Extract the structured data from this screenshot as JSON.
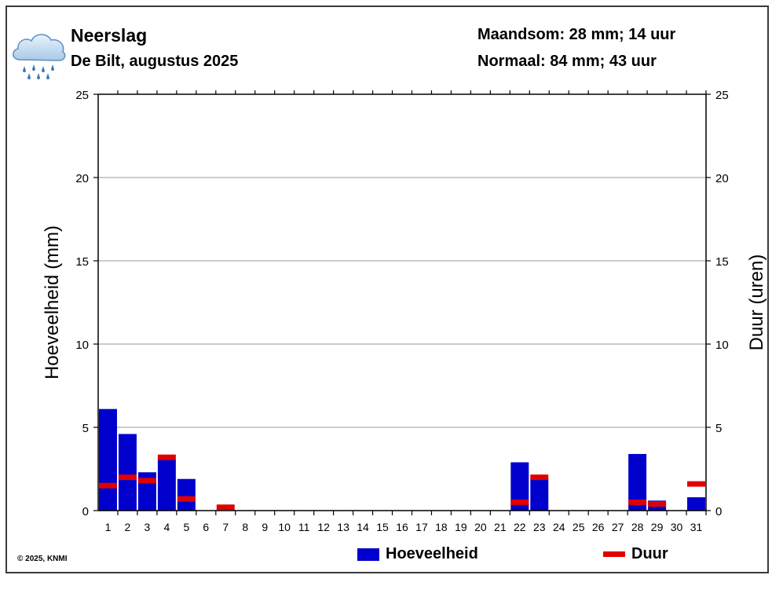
{
  "header": {
    "title": "Neerslag",
    "subtitle": "De Bilt, augustus 2025",
    "month_sum": "Maandsom: 28 mm; 14 uur",
    "normal": "Normaal: 84 mm; 43 uur"
  },
  "icon": "rain-cloud-icon",
  "copyright": "© 2025, KNMI",
  "colors": {
    "amount": "#0000cc",
    "duration": "#e00000",
    "grid": "#999999"
  },
  "chart_data": {
    "type": "bar",
    "xlabel": "",
    "ylabel": "Hoeveelheid (mm)",
    "y2label": "Duur (uren)",
    "ylim": [
      0,
      25
    ],
    "y2lim": [
      0,
      25
    ],
    "yticks": [
      0,
      5,
      10,
      15,
      20,
      25
    ],
    "grid": true,
    "categories": [
      "1",
      "2",
      "3",
      "4",
      "5",
      "6",
      "7",
      "8",
      "9",
      "10",
      "11",
      "12",
      "13",
      "14",
      "15",
      "16",
      "17",
      "18",
      "19",
      "20",
      "21",
      "22",
      "23",
      "24",
      "25",
      "26",
      "27",
      "28",
      "29",
      "30",
      "31"
    ],
    "series": [
      {
        "name": "Hoeveelheid",
        "type": "bar",
        "values": [
          6.1,
          4.6,
          2.3,
          3.1,
          1.9,
          0,
          0,
          0,
          0,
          0,
          0,
          0,
          0,
          0,
          0,
          0,
          0,
          0,
          0,
          0,
          0,
          2.9,
          1.9,
          0,
          0,
          0,
          0,
          3.4,
          0.6,
          0,
          0.8
        ]
      },
      {
        "name": "Duur",
        "type": "marker",
        "values": [
          1.5,
          2.0,
          1.8,
          3.2,
          0.7,
          0,
          0.2,
          0,
          0,
          0,
          0,
          0,
          0,
          0,
          0,
          0,
          0,
          0,
          0,
          0,
          0,
          0.5,
          2.0,
          0,
          0,
          0,
          0,
          0.5,
          0.4,
          0,
          1.6
        ]
      }
    ],
    "legend": [
      "Hoeveelheid",
      "Duur"
    ]
  }
}
